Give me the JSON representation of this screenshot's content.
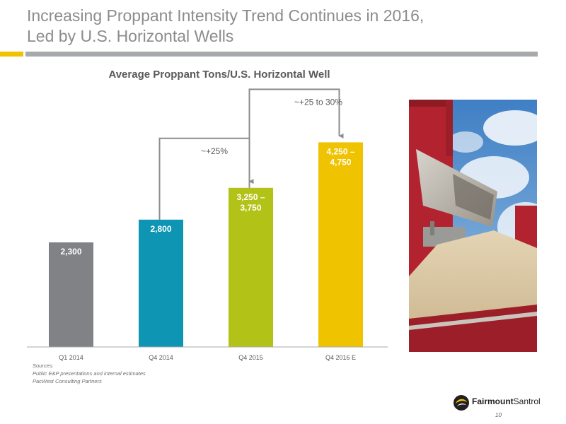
{
  "slide": {
    "title_line1": "Increasing Proppant Intensity Trend Continues in 2016,",
    "title_line2": "Led by U.S. Horizontal Wells",
    "page_number": "10"
  },
  "sources": {
    "heading": "Sources:",
    "line1": "Public E&P presentations and internal estimates",
    "line2": "PacWest Consulting Partners"
  },
  "logo": {
    "brand_bold": "Fairmount",
    "brand_regular": "Santrol",
    "icon": "fairmount-swirl-icon"
  },
  "photo": {
    "subject": "sand-loading-photo"
  },
  "colors": {
    "accent": "#f0c300",
    "rule": "#a7a9ac",
    "arrow": "#8a8c8e"
  },
  "chart_data": {
    "type": "bar",
    "title": "Average Proppant Tons/U.S. Horizontal Well",
    "xlabel": "",
    "ylabel": "",
    "categories": [
      "Q1 2014",
      "Q4 2014",
      "Q4 2015",
      "Q4 2016 E"
    ],
    "values": [
      2300,
      2800,
      3500,
      4500
    ],
    "ranges": [
      null,
      null,
      [
        3250,
        3750
      ],
      [
        4250,
        4750
      ]
    ],
    "value_labels": [
      [
        "2,300"
      ],
      [
        "2,800"
      ],
      [
        "3,250 –",
        "3,750"
      ],
      [
        "4,250 –",
        "4,750"
      ]
    ],
    "colors": [
      "#808285",
      "#0e95b3",
      "#b3c217",
      "#f0c300"
    ],
    "ylim": [
      0,
      6000
    ],
    "grid": false,
    "annotations": [
      {
        "text": "~+25%",
        "from": 1,
        "to": 2
      },
      {
        "text": "~+25 to 30%",
        "from": 2,
        "to": 3
      }
    ]
  }
}
